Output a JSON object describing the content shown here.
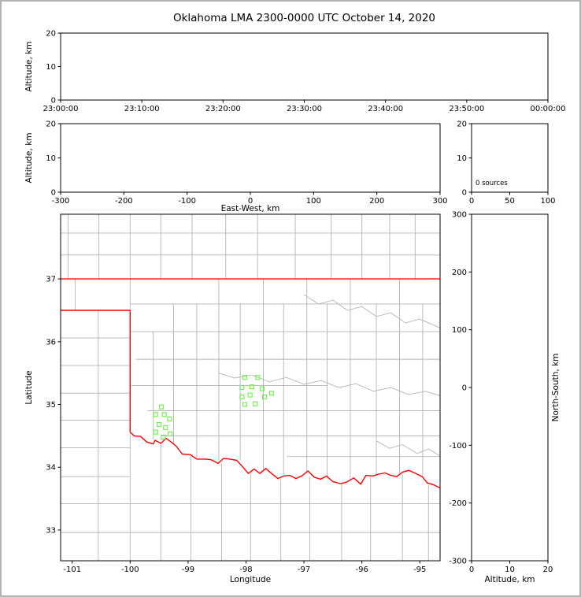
{
  "title": "Oklahoma LMA 2300-0000 UTC October 14, 2020",
  "colors": {
    "county_line": "#b5b5b5",
    "state_border": "#ff0000",
    "station_marker": "#77ee55",
    "axis": "#000000",
    "background": "#ffffff",
    "page_border": "#b3b3b3"
  },
  "chart_data": [
    {
      "id": "time_height",
      "type": "scatter",
      "description": "Altitude vs time cross-section, no sources plotted",
      "xlabel": "",
      "ylabel": "Altitude, km",
      "xlim": [
        0,
        60
      ],
      "ylim": [
        0,
        20
      ],
      "xticks": [
        0,
        10,
        20,
        30,
        40,
        50,
        60
      ],
      "xtick_labels": [
        "23:00:00",
        "23:10:00",
        "23:20:00",
        "23:30:00",
        "23:40:00",
        "23:50:00",
        "00:00:00"
      ],
      "yticks": [
        0,
        10,
        20
      ],
      "points": []
    },
    {
      "id": "ew_height",
      "type": "scatter",
      "description": "Altitude vs East-West distance cross-section, no sources plotted",
      "xlabel": "East-West, km",
      "ylabel": "Altitude, km",
      "xlim": [
        -300,
        300
      ],
      "ylim": [
        0,
        20
      ],
      "xticks": [
        -300,
        -200,
        -100,
        0,
        100,
        200,
        300
      ],
      "yticks": [
        0,
        10,
        20
      ],
      "points": []
    },
    {
      "id": "alt_hist",
      "type": "histogram",
      "description": "Altitude histogram of sources, empty",
      "annotation": "0 sources",
      "xlim": [
        0,
        100
      ],
      "ylim": [
        0,
        20
      ],
      "xticks": [
        0,
        50,
        100
      ],
      "yticks": [
        0,
        10,
        20
      ],
      "values": []
    },
    {
      "id": "map",
      "type": "scatter",
      "description": "Plan-view map of Oklahoma with county borders, state border and LMA station markers",
      "xlabel": "Longitude",
      "ylabel": "Latitude",
      "xlim": [
        -101.2,
        -94.65
      ],
      "ylim": [
        32.51,
        38.03
      ],
      "xticks": [
        -101,
        -100,
        -99,
        -98,
        -97,
        -96,
        -95
      ],
      "yticks": [
        33,
        34,
        35,
        36,
        37
      ],
      "stations": [
        [
          -98.02,
          35.43
        ],
        [
          -97.8,
          35.43
        ],
        [
          -98.07,
          35.27
        ],
        [
          -97.9,
          35.28
        ],
        [
          -97.72,
          35.25
        ],
        [
          -98.07,
          35.12
        ],
        [
          -97.93,
          35.15
        ],
        [
          -98.02,
          35.0
        ],
        [
          -97.84,
          35.01
        ],
        [
          -97.68,
          35.12
        ],
        [
          -97.56,
          35.18
        ],
        [
          -99.46,
          34.96
        ],
        [
          -99.56,
          34.84
        ],
        [
          -99.41,
          34.84
        ],
        [
          -99.32,
          34.77
        ],
        [
          -99.5,
          34.68
        ],
        [
          -99.39,
          34.63
        ],
        [
          -99.56,
          34.56
        ],
        [
          -99.31,
          34.53
        ],
        [
          -99.43,
          34.48
        ]
      ],
      "state_border": [
        [
          [
            -101.2,
            37.0
          ],
          [
            -94.65,
            37.0
          ]
        ],
        [
          [
            -101.2,
            36.5
          ],
          [
            -100.0,
            36.5
          ]
        ],
        [
          [
            -100.0,
            36.5
          ],
          [
            -100.0,
            34.56
          ]
        ],
        [
          [
            -100.0,
            34.56
          ],
          [
            -99.93,
            34.5
          ],
          [
            -99.82,
            34.49
          ],
          [
            -99.71,
            34.4
          ],
          [
            -99.6,
            34.37
          ],
          [
            -99.57,
            34.43
          ],
          [
            -99.47,
            34.38
          ],
          [
            -99.38,
            34.46
          ],
          [
            -99.29,
            34.4
          ],
          [
            -99.2,
            34.33
          ],
          [
            -99.1,
            34.21
          ],
          [
            -98.96,
            34.2
          ],
          [
            -98.85,
            34.13
          ],
          [
            -98.7,
            34.13
          ],
          [
            -98.6,
            34.12
          ],
          [
            -98.48,
            34.06
          ],
          [
            -98.39,
            34.14
          ],
          [
            -98.28,
            34.13
          ],
          [
            -98.16,
            34.11
          ],
          [
            -98.08,
            34.03
          ],
          [
            -97.96,
            33.9
          ],
          [
            -97.86,
            33.97
          ],
          [
            -97.76,
            33.9
          ],
          [
            -97.66,
            33.98
          ],
          [
            -97.56,
            33.9
          ],
          [
            -97.45,
            33.82
          ],
          [
            -97.35,
            33.86
          ],
          [
            -97.24,
            33.87
          ],
          [
            -97.14,
            33.82
          ],
          [
            -97.04,
            33.86
          ],
          [
            -96.93,
            33.94
          ],
          [
            -96.82,
            33.84
          ],
          [
            -96.71,
            33.81
          ],
          [
            -96.61,
            33.86
          ],
          [
            -96.5,
            33.77
          ],
          [
            -96.37,
            33.74
          ],
          [
            -96.27,
            33.76
          ],
          [
            -96.14,
            33.83
          ],
          [
            -96.02,
            33.73
          ],
          [
            -95.93,
            33.87
          ],
          [
            -95.81,
            33.86
          ],
          [
            -95.71,
            33.89
          ],
          [
            -95.6,
            33.91
          ],
          [
            -95.5,
            33.87
          ],
          [
            -95.4,
            33.85
          ],
          [
            -95.3,
            33.92
          ],
          [
            -95.19,
            33.95
          ],
          [
            -95.09,
            33.91
          ],
          [
            -94.96,
            33.85
          ],
          [
            -94.87,
            33.75
          ],
          [
            -94.76,
            33.72
          ],
          [
            -94.65,
            33.67
          ]
        ]
      ],
      "counties": {
        "vlines": [
          [
            -101.07,
            37,
            38.03
          ],
          [
            -100.54,
            37,
            38.03
          ],
          [
            -100.0,
            37,
            38.03
          ],
          [
            -99.47,
            37,
            38.03
          ],
          [
            -98.93,
            37,
            38.03
          ],
          [
            -98.35,
            37,
            38.03
          ],
          [
            -97.8,
            37,
            38.03
          ],
          [
            -97.15,
            37,
            38.03
          ],
          [
            -96.53,
            37,
            38.03
          ],
          [
            -96.0,
            37,
            38.03
          ],
          [
            -95.52,
            37,
            38.03
          ],
          [
            -95.08,
            37,
            38.03
          ],
          [
            -100.95,
            36.5,
            37
          ],
          [
            -100.0,
            36.5,
            37
          ],
          [
            -100.55,
            32.51,
            36.5
          ],
          [
            -100.0,
            32.51,
            34.56
          ],
          [
            -99.47,
            32.51,
            34.38
          ],
          [
            -98.95,
            32.51,
            34.2
          ],
          [
            -98.42,
            32.51,
            34.06
          ],
          [
            -97.92,
            32.51,
            33.9
          ],
          [
            -97.4,
            32.51,
            33.82
          ],
          [
            -96.9,
            32.51,
            33.85
          ],
          [
            -96.35,
            32.51,
            33.74
          ],
          [
            -95.85,
            32.51,
            33.85
          ],
          [
            -95.3,
            32.51,
            33.9
          ],
          [
            -94.85,
            32.51,
            33.72
          ],
          [
            -99.6,
            34.45,
            36.16
          ],
          [
            -99.25,
            34.37,
            36.6
          ],
          [
            -98.85,
            34.15,
            36.6
          ],
          [
            -98.47,
            34.08,
            37.0
          ],
          [
            -98.1,
            34.12,
            36.6
          ],
          [
            -97.7,
            33.95,
            37.0
          ],
          [
            -97.35,
            33.88,
            36.6
          ],
          [
            -96.95,
            33.9,
            37.0
          ],
          [
            -96.6,
            33.82,
            36.6
          ],
          [
            -96.2,
            33.78,
            37.0
          ],
          [
            -95.75,
            33.87,
            36.6
          ],
          [
            -95.35,
            33.9,
            37.0
          ],
          [
            -94.95,
            33.85,
            36.6
          ]
        ],
        "hlines": [
          [
            37.38,
            -101.2,
            -94.65
          ],
          [
            37.73,
            -101.2,
            -94.65
          ],
          [
            36.06,
            -101.2,
            -100.0
          ],
          [
            35.62,
            -101.2,
            -100.0
          ],
          [
            35.18,
            -101.2,
            -100.0
          ],
          [
            34.75,
            -101.2,
            -100.0
          ],
          [
            34.31,
            -101.2,
            -100.0
          ],
          [
            33.85,
            -101.2,
            -100.0
          ],
          [
            33.42,
            -101.2,
            -94.65
          ],
          [
            32.96,
            -101.2,
            -94.65
          ],
          [
            36.6,
            -100.0,
            -94.65
          ],
          [
            36.16,
            -100.0,
            -94.65
          ],
          [
            35.72,
            -99.9,
            -94.65
          ],
          [
            35.3,
            -100.0,
            -96.6
          ],
          [
            34.9,
            -99.7,
            -94.65
          ],
          [
            34.5,
            -99.45,
            -94.65
          ],
          [
            34.17,
            -97.3,
            -94.65
          ]
        ],
        "rivers": [
          [
            [
              -98.47,
              35.5
            ],
            [
              -98.2,
              35.42
            ],
            [
              -97.9,
              35.47
            ],
            [
              -97.6,
              35.36
            ],
            [
              -97.3,
              35.43
            ],
            [
              -97.0,
              35.32
            ],
            [
              -96.7,
              35.38
            ],
            [
              -96.4,
              35.27
            ],
            [
              -96.1,
              35.33
            ],
            [
              -95.8,
              35.21
            ],
            [
              -95.5,
              35.27
            ],
            [
              -95.2,
              35.16
            ],
            [
              -94.9,
              35.21
            ],
            [
              -94.65,
              35.14
            ]
          ],
          [
            [
              -97.0,
              36.75
            ],
            [
              -96.75,
              36.6
            ],
            [
              -96.5,
              36.66
            ],
            [
              -96.25,
              36.5
            ],
            [
              -96.0,
              36.56
            ],
            [
              -95.75,
              36.4
            ],
            [
              -95.5,
              36.46
            ],
            [
              -95.25,
              36.3
            ],
            [
              -95.0,
              36.36
            ],
            [
              -94.65,
              36.22
            ]
          ],
          [
            [
              -95.75,
              34.42
            ],
            [
              -95.52,
              34.3
            ],
            [
              -95.3,
              34.36
            ],
            [
              -95.05,
              34.22
            ],
            [
              -94.85,
              34.29
            ],
            [
              -94.65,
              34.18
            ]
          ]
        ]
      }
    },
    {
      "id": "ns_height",
      "type": "scatter",
      "description": "North-South distance vs altitude cross-section, no sources plotted",
      "xlabel": "Altitude, km",
      "ylabel_right": "North-South, km",
      "xlim": [
        0,
        20
      ],
      "ylim": [
        -300,
        300
      ],
      "xticks": [
        0,
        10,
        20
      ],
      "yticks": [
        -300,
        -200,
        -100,
        0,
        100,
        200,
        300
      ],
      "points": []
    }
  ]
}
